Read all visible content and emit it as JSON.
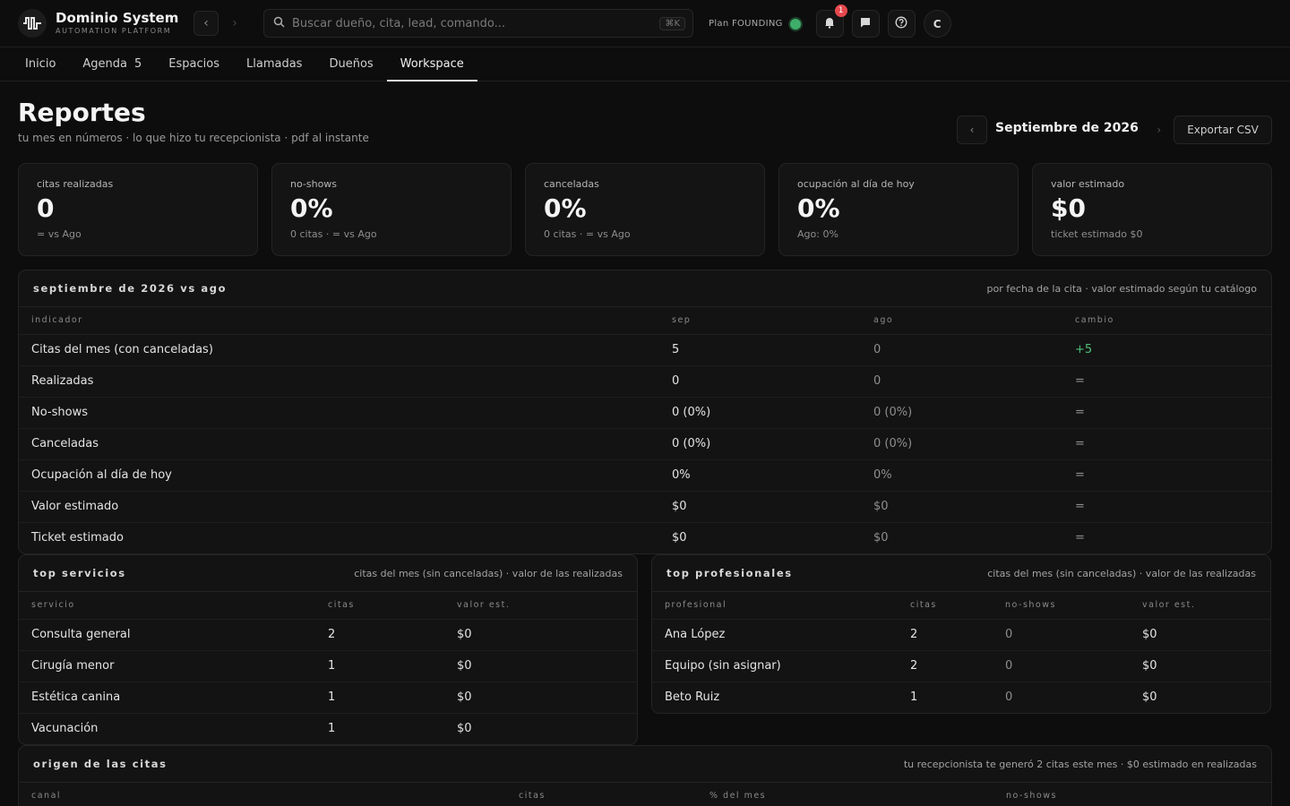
{
  "app": {
    "name": "Dominio System",
    "tagline": "AUTOMATION PLATFORM"
  },
  "search": {
    "placeholder": "Buscar dueño, cita, lead, comando...",
    "shortcut": "⌘K"
  },
  "plan": {
    "label": "Plan FOUNDING",
    "status_color": "#3fae6a"
  },
  "notifications": {
    "count": "1"
  },
  "user": {
    "initial": "C"
  },
  "tabs": [
    {
      "label": "Inicio"
    },
    {
      "label": "Agenda",
      "count": "5"
    },
    {
      "label": "Espacios"
    },
    {
      "label": "Llamadas"
    },
    {
      "label": "Dueños"
    },
    {
      "label": "Workspace",
      "active": true
    }
  ],
  "page": {
    "title": "Reportes",
    "subtitle": "tu mes en números · lo que hizo tu recepcionista · pdf al instante",
    "month": "Septiembre de 2026",
    "export_label": "Exportar CSV"
  },
  "kpis": [
    {
      "label": "citas realizadas",
      "value": "0",
      "sub": "= vs Ago"
    },
    {
      "label": "no-shows",
      "value": "0%",
      "sub": "0 citas · = vs Ago"
    },
    {
      "label": "canceladas",
      "value": "0%",
      "sub": "0 citas · = vs Ago"
    },
    {
      "label": "ocupación al día de hoy",
      "value": "0%",
      "sub": "Ago: 0%"
    },
    {
      "label": "valor estimado",
      "value": "$0",
      "sub": "ticket estimado $0"
    }
  ],
  "comparison": {
    "title": "septiembre de 2026 vs ago",
    "note": "por fecha de la cita · valor estimado según tu catálogo",
    "columns": [
      "indicador",
      "sep",
      "ago",
      "cambio"
    ],
    "rows": [
      {
        "indicator": "Citas del mes (con canceladas)",
        "sep": "5",
        "ago": "0",
        "change": "+5"
      },
      {
        "indicator": "Realizadas",
        "sep": "0",
        "ago": "0",
        "change": "="
      },
      {
        "indicator": "No-shows",
        "sep": "0 (0%)",
        "ago": "0 (0%)",
        "change": "="
      },
      {
        "indicator": "Canceladas",
        "sep": "0 (0%)",
        "ago": "0 (0%)",
        "change": "="
      },
      {
        "indicator": "Ocupación al día de hoy",
        "sep": "0%",
        "ago": "0%",
        "change": "="
      },
      {
        "indicator": "Valor estimado",
        "sep": "$0",
        "ago": "$0",
        "change": "="
      },
      {
        "indicator": "Ticket estimado",
        "sep": "$0",
        "ago": "$0",
        "change": "="
      }
    ]
  },
  "top_services": {
    "title": "top servicios",
    "note": "citas del mes (sin canceladas) · valor de las realizadas",
    "columns": [
      "servicio",
      "citas",
      "valor est."
    ],
    "rows": [
      {
        "name": "Consulta general",
        "citas": "2",
        "value": "$0"
      },
      {
        "name": "Cirugía menor",
        "citas": "1",
        "value": "$0"
      },
      {
        "name": "Estética canina",
        "citas": "1",
        "value": "$0"
      },
      {
        "name": "Vacunación",
        "citas": "1",
        "value": "$0"
      }
    ]
  },
  "top_professionals": {
    "title": "top profesionales",
    "note": "citas del mes (sin canceladas) · valor de las realizadas",
    "columns": [
      "profesional",
      "citas",
      "no-shows",
      "valor est."
    ],
    "rows": [
      {
        "name": "Ana López",
        "citas": "2",
        "noshows": "0",
        "value": "$0"
      },
      {
        "name": "Equipo (sin asignar)",
        "citas": "2",
        "noshows": "0",
        "value": "$0"
      },
      {
        "name": "Beto Ruiz",
        "citas": "1",
        "noshows": "0",
        "value": "$0"
      }
    ]
  },
  "origin": {
    "title": "origen de las citas",
    "note": "tu recepcionista te generó 2 citas este mes · $0 estimado en realizadas",
    "columns": [
      "canal",
      "citas",
      "% del mes",
      "no-shows"
    ]
  }
}
